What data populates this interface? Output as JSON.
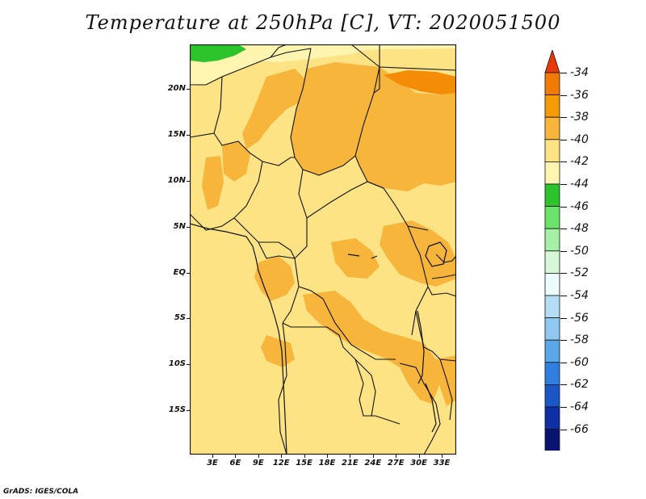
{
  "title": "Temperature at 250hPa [C], VT: 2020051500",
  "credit": "GrADS: IGES/COLA",
  "map": {
    "lat_labels": [
      "20N",
      "15N",
      "10N",
      "5N",
      "EQ",
      "5S",
      "10S",
      "15S"
    ],
    "lon_labels": [
      "3E",
      "6E",
      "9E",
      "12E",
      "15E",
      "18E",
      "21E",
      "24E",
      "27E",
      "30E",
      "33E"
    ],
    "fill_colors": {
      "lt42": "#2cc32c",
      "m42_40": "#fff5b0",
      "m40_38": "#fde383",
      "m38_36": "#f7b53c",
      "m36_34": "#f48c07"
    }
  },
  "colorbar": {
    "labels": [
      "-34",
      "-36",
      "-38",
      "-40",
      "-42",
      "-44",
      "-46",
      "-48",
      "-50",
      "-52",
      "-54",
      "-56",
      "-58",
      "-60",
      "-62",
      "-64",
      "-66"
    ],
    "colors": [
      "#e83a06",
      "#f07a04",
      "#f59b09",
      "#f7b53c",
      "#fde383",
      "#fff5b0",
      "#2cc32c",
      "#6be36b",
      "#a4f0a4",
      "#d6f8d6",
      "#ecfbfb",
      "#b4def6",
      "#8fc9f2",
      "#5aa8ea",
      "#2f7ee0",
      "#1a56c6",
      "#0e2fa6",
      "#0a1470",
      "#e4e4ee"
    ]
  }
}
